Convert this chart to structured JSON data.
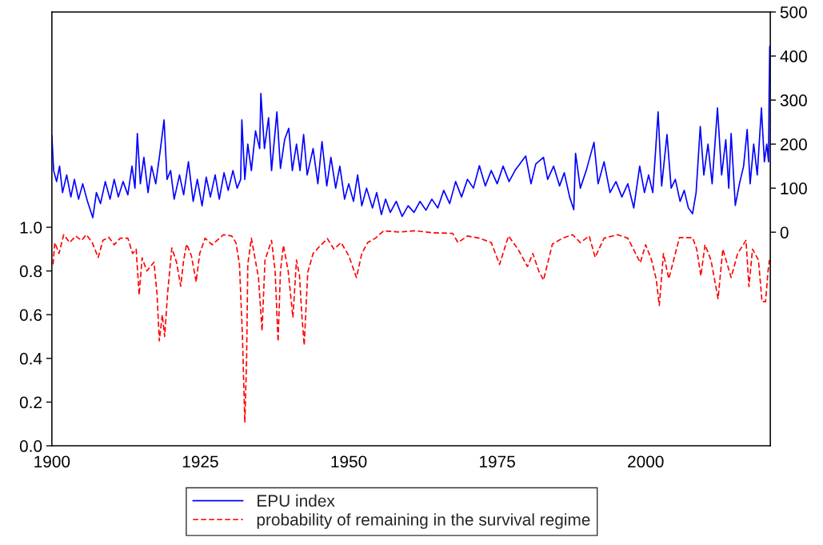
{
  "chart_data": {
    "type": "line",
    "xlim": [
      1900,
      2021
    ],
    "xticks": [
      1900,
      1925,
      1950,
      1975,
      2000
    ],
    "ylim": [
      0,
      1.985
    ],
    "yticks": [
      {
        "value": 0,
        "label": "0.0"
      },
      {
        "value": 0.2,
        "label": "0.2"
      },
      {
        "value": 0.4,
        "label": "0.4"
      },
      {
        "value": 0.6,
        "label": "0.6"
      },
      {
        "value": 0.8,
        "label": "0.8"
      },
      {
        "value": 1,
        "label": "1.0"
      }
    ],
    "y2lim": [
      -485,
      500
    ],
    "y2ticks": [
      0,
      100,
      200,
      300,
      400,
      500
    ],
    "grid": false,
    "legend": "bottom",
    "series": [
      {
        "name": "EPU index",
        "color": "#0000ff",
        "axis": "y2",
        "line_style": "solid",
        "x": [
          1900.0,
          1900.3,
          1900.8,
          1901.3,
          1901.8,
          1902.5,
          1903.2,
          1903.8,
          1904.5,
          1905.2,
          1906.0,
          1906.9,
          1907.5,
          1908.2,
          1909.0,
          1909.8,
          1910.5,
          1911.2,
          1912.0,
          1912.8,
          1913.5,
          1914.0,
          1914.4,
          1914.9,
          1915.5,
          1916.2,
          1916.8,
          1917.5,
          1918.2,
          1918.9,
          1919.4,
          1920.0,
          1920.6,
          1921.5,
          1922.2,
          1923.0,
          1923.8,
          1924.5,
          1925.3,
          1926.0,
          1926.7,
          1927.5,
          1928.2,
          1929.0,
          1929.7,
          1930.5,
          1931.2,
          1931.8,
          1932.0,
          1932.5,
          1933.0,
          1933.6,
          1934.3,
          1935.0,
          1935.2,
          1935.8,
          1936.5,
          1937.0,
          1937.9,
          1938.5,
          1939.2,
          1939.9,
          1940.5,
          1941.2,
          1941.8,
          1942.4,
          1943.0,
          1944.0,
          1944.8,
          1945.5,
          1946.3,
          1947.0,
          1947.8,
          1948.5,
          1949.3,
          1950.0,
          1950.8,
          1951.5,
          1952.2,
          1953.0,
          1954.0,
          1954.7,
          1955.5,
          1956.2,
          1957.0,
          1958.0,
          1959.0,
          1960.0,
          1961.0,
          1962.0,
          1963.0,
          1964.0,
          1965.0,
          1966.0,
          1967.0,
          1968.0,
          1969.0,
          1970.0,
          1971.0,
          1972.0,
          1973.0,
          1974.0,
          1975.0,
          1976.0,
          1977.0,
          1978.0,
          1979.8,
          1980.7,
          1981.5,
          1982.8,
          1983.5,
          1984.5,
          1985.5,
          1986.3,
          1987.2,
          1987.9,
          1988.2,
          1989.0,
          1990.0,
          1991.3,
          1992.0,
          1993.0,
          1994.0,
          1995.0,
          1996.0,
          1997.0,
          1998.0,
          1999.0,
          1999.8,
          2000.5,
          2001.2,
          2001.7,
          2002.1,
          2002.7,
          2003.6,
          2004.3,
          2005.0,
          2005.8,
          2006.5,
          2007.2,
          2007.9,
          2008.5,
          2009.2,
          2009.8,
          2010.5,
          2011.2,
          2012.1,
          2012.8,
          2013.5,
          2014.0,
          2014.4,
          2015.1,
          2015.8,
          2016.5,
          2017.1,
          2017.6,
          2018.2,
          2018.8,
          2019.5,
          2020.0,
          2020.4,
          2020.7,
          2020.8,
          2020.9
        ],
        "values": [
          220,
          140,
          115,
          150,
          90,
          130,
          80,
          120,
          75,
          110,
          70,
          33,
          90,
          65,
          115,
          75,
          120,
          80,
          115,
          85,
          150,
          100,
          224,
          110,
          170,
          90,
          150,
          110,
          180,
          255,
          120,
          140,
          75,
          130,
          85,
          160,
          70,
          120,
          60,
          125,
          80,
          130,
          75,
          135,
          95,
          140,
          100,
          120,
          255,
          120,
          200,
          140,
          230,
          190,
          315,
          190,
          260,
          140,
          273,
          145,
          210,
          236,
          140,
          200,
          140,
          222,
          130,
          190,
          110,
          206,
          105,
          170,
          100,
          150,
          75,
          110,
          70,
          130,
          60,
          100,
          55,
          90,
          40,
          75,
          45,
          70,
          36,
          60,
          45,
          70,
          50,
          75,
          55,
          95,
          65,
          115,
          80,
          120,
          100,
          151,
          105,
          140,
          110,
          150,
          115,
          140,
          173,
          110,
          155,
          170,
          120,
          150,
          105,
          135,
          80,
          51,
          179,
          100,
          140,
          204,
          110,
          160,
          90,
          115,
          80,
          110,
          55,
          150,
          90,
          130,
          90,
          190,
          273,
          105,
          222,
          100,
          120,
          70,
          95,
          55,
          42,
          90,
          240,
          130,
          200,
          110,
          282,
          130,
          210,
          100,
          224,
          61,
          110,
          150,
          233,
          110,
          200,
          130,
          282,
          160,
          200,
          160,
          318,
          422
        ]
      },
      {
        "name": "probability of remaining in the survival regime",
        "color": "#ff0000",
        "axis": "y",
        "line_style": "dashed",
        "x": [
          1900.2,
          1900.5,
          1901.2,
          1902.0,
          1903.0,
          1904.0,
          1905.0,
          1905.8,
          1906.8,
          1907.8,
          1908.6,
          1909.6,
          1910.5,
          1911.5,
          1912.8,
          1913.6,
          1914.2,
          1914.7,
          1915.2,
          1916.0,
          1917.2,
          1917.7,
          1918.1,
          1918.6,
          1919.0,
          1919.5,
          1920.2,
          1921.0,
          1921.7,
          1922.2,
          1922.7,
          1923.5,
          1924.3,
          1924.9,
          1925.8,
          1927.0,
          1928.9,
          1930.3,
          1931.0,
          1931.6,
          1932.1,
          1932.5,
          1932.8,
          1933.0,
          1933.6,
          1934.2,
          1934.8,
          1935.4,
          1935.9,
          1937.0,
          1937.6,
          1938.1,
          1938.5,
          1939.0,
          1939.8,
          1940.6,
          1941.2,
          1941.7,
          1942.1,
          1942.5,
          1943.1,
          1944.0,
          1945.0,
          1946.4,
          1947.5,
          1948.7,
          1950.0,
          1951.3,
          1952.2,
          1953.2,
          1954.5,
          1955.9,
          1958.5,
          1961.2,
          1964.0,
          1967.5,
          1968.4,
          1970.0,
          1972.0,
          1974.0,
          1975.4,
          1976.9,
          1978.5,
          1980.1,
          1981.0,
          1982.0,
          1982.8,
          1984.3,
          1986.0,
          1987.7,
          1989.0,
          1990.5,
          1991.5,
          1993.0,
          1995.3,
          1997.0,
          1999.1,
          2000.0,
          2001.0,
          2001.8,
          2002.3,
          2003.0,
          2003.9,
          2005.7,
          2007.9,
          2008.6,
          2009.3,
          2010.0,
          2011.0,
          2012.2,
          2013.0,
          2014.4,
          2015.5,
          2016.9,
          2017.4,
          2018.0,
          2019.0,
          2019.6,
          2020.2,
          2020.6,
          2020.85
        ],
        "values": [
          0.83,
          0.93,
          0.88,
          0.966,
          0.93,
          0.96,
          0.94,
          0.966,
          0.93,
          0.862,
          0.94,
          0.954,
          0.92,
          0.95,
          0.95,
          0.88,
          0.9,
          0.69,
          0.86,
          0.8,
          0.84,
          0.7,
          0.48,
          0.6,
          0.5,
          0.7,
          0.905,
          0.84,
          0.73,
          0.85,
          0.923,
          0.87,
          0.75,
          0.88,
          0.95,
          0.92,
          0.966,
          0.96,
          0.93,
          0.83,
          0.5,
          0.106,
          0.4,
          0.83,
          0.95,
          0.86,
          0.77,
          0.526,
          0.85,
          0.94,
          0.8,
          0.477,
          0.8,
          0.917,
          0.8,
          0.587,
          0.85,
          0.78,
          0.6,
          0.46,
          0.795,
          0.88,
          0.91,
          0.948,
          0.9,
          0.93,
          0.87,
          0.77,
          0.88,
          0.93,
          0.95,
          0.984,
          0.978,
          0.984,
          0.975,
          0.972,
          0.93,
          0.96,
          0.95,
          0.93,
          0.83,
          0.96,
          0.9,
          0.82,
          0.88,
          0.8,
          0.758,
          0.923,
          0.95,
          0.966,
          0.93,
          0.96,
          0.862,
          0.95,
          0.966,
          0.95,
          0.838,
          0.92,
          0.85,
          0.76,
          0.642,
          0.88,
          0.764,
          0.953,
          0.953,
          0.9,
          0.777,
          0.92,
          0.85,
          0.673,
          0.9,
          0.77,
          0.88,
          0.94,
          0.728,
          0.9,
          0.85,
          0.66,
          0.66,
          0.795,
          0.85
        ]
      }
    ]
  }
}
